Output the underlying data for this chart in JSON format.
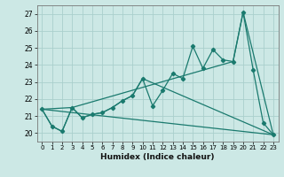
{
  "xlabel": "Humidex (Indice chaleur)",
  "xlim": [
    -0.5,
    23.5
  ],
  "ylim": [
    19.5,
    27.5
  ],
  "yticks": [
    20,
    21,
    22,
    23,
    24,
    25,
    26,
    27
  ],
  "xticks": [
    0,
    1,
    2,
    3,
    4,
    5,
    6,
    7,
    8,
    9,
    10,
    11,
    12,
    13,
    14,
    15,
    16,
    17,
    18,
    19,
    20,
    21,
    22,
    23
  ],
  "bg_color": "#cce8e5",
  "grid_color": "#aacfcc",
  "line_color": "#1a7a6e",
  "line1_x": [
    0,
    1,
    2,
    3,
    4,
    5,
    6,
    7,
    8,
    9,
    10,
    11,
    12,
    13,
    14,
    15,
    16,
    17,
    18,
    19,
    20,
    21,
    22,
    23
  ],
  "line1_y": [
    21.4,
    20.4,
    20.1,
    21.5,
    20.9,
    21.1,
    21.2,
    21.5,
    21.9,
    22.2,
    23.2,
    21.6,
    22.5,
    23.5,
    23.2,
    25.1,
    23.8,
    24.9,
    24.3,
    24.2,
    27.1,
    23.7,
    20.6,
    19.9
  ],
  "line2_x": [
    0,
    1,
    2,
    3,
    4,
    5,
    6,
    7,
    8,
    9,
    10,
    23
  ],
  "line2_y": [
    21.4,
    20.4,
    20.1,
    21.5,
    20.9,
    21.1,
    21.2,
    21.5,
    21.9,
    22.2,
    23.2,
    19.9
  ],
  "line3_x": [
    0,
    3,
    19,
    20,
    23
  ],
  "line3_y": [
    21.4,
    21.5,
    24.2,
    27.1,
    19.9
  ],
  "line4_x": [
    0,
    23
  ],
  "line4_y": [
    21.4,
    19.9
  ]
}
